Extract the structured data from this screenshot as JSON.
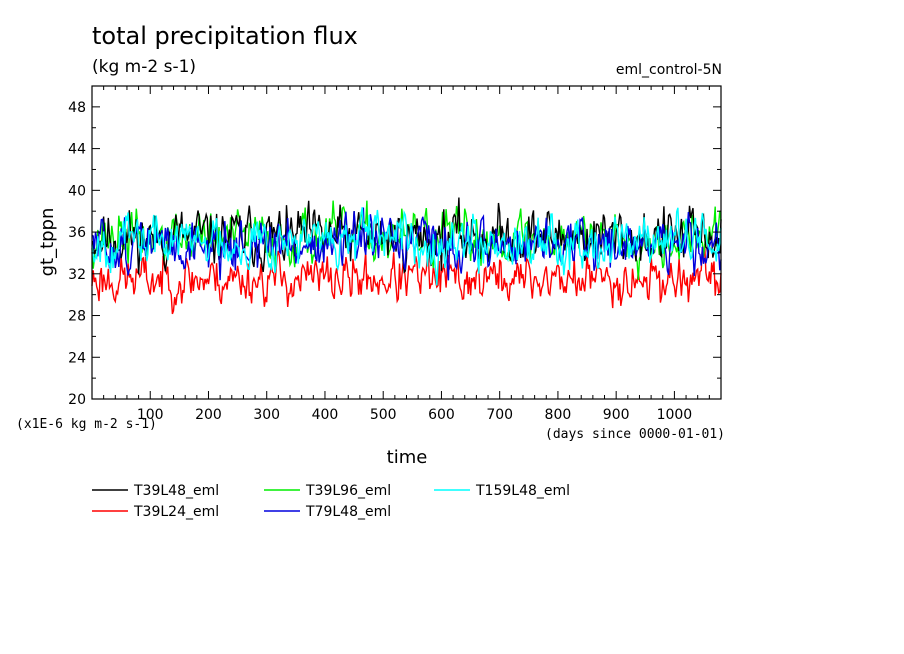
{
  "chart_data": {
    "type": "line",
    "title": "total precipitation flux",
    "subtitle": "(kg m-2 s-1)",
    "run_label": "eml_control-5N",
    "ylabel": "gt_tppn",
    "xlabel": "time",
    "y_scale_note": "(x1E-6 kg m-2 s-1)",
    "x_unit_note": "(days since 0000-01-01)",
    "xlim": [
      0,
      1080
    ],
    "ylim": [
      20,
      50
    ],
    "x_ticks": [
      100,
      200,
      300,
      400,
      500,
      600,
      700,
      800,
      900,
      1000
    ],
    "x_tick_labels": [
      "100",
      "200",
      "300",
      "400",
      "500",
      "600",
      "700",
      "800",
      "900",
      "1000"
    ],
    "y_ticks": [
      20,
      24,
      28,
      32,
      36,
      40,
      44,
      48
    ],
    "y_tick_labels": [
      "20",
      "24",
      "28",
      "32",
      "36",
      "40",
      "44",
      "48"
    ],
    "grid": false,
    "legend_position": "bottom",
    "series": [
      {
        "name": "T39L48_eml",
        "color": "#000000",
        "mean": 35.5,
        "amplitude": 2.6,
        "seed": 11
      },
      {
        "name": "T39L24_eml",
        "color": "#ff0000",
        "mean": 31.5,
        "amplitude": 2.2,
        "seed": 23
      },
      {
        "name": "T39L96_eml",
        "color": "#00ee00",
        "mean": 35.5,
        "amplitude": 2.4,
        "seed": 37
      },
      {
        "name": "T79L48_eml",
        "color": "#0000dd",
        "mean": 34.8,
        "amplitude": 2.4,
        "seed": 51
      },
      {
        "name": "T159L48_eml",
        "color": "#00ffff",
        "mean": 35.2,
        "amplitude": 2.3,
        "seed": 67
      }
    ]
  }
}
